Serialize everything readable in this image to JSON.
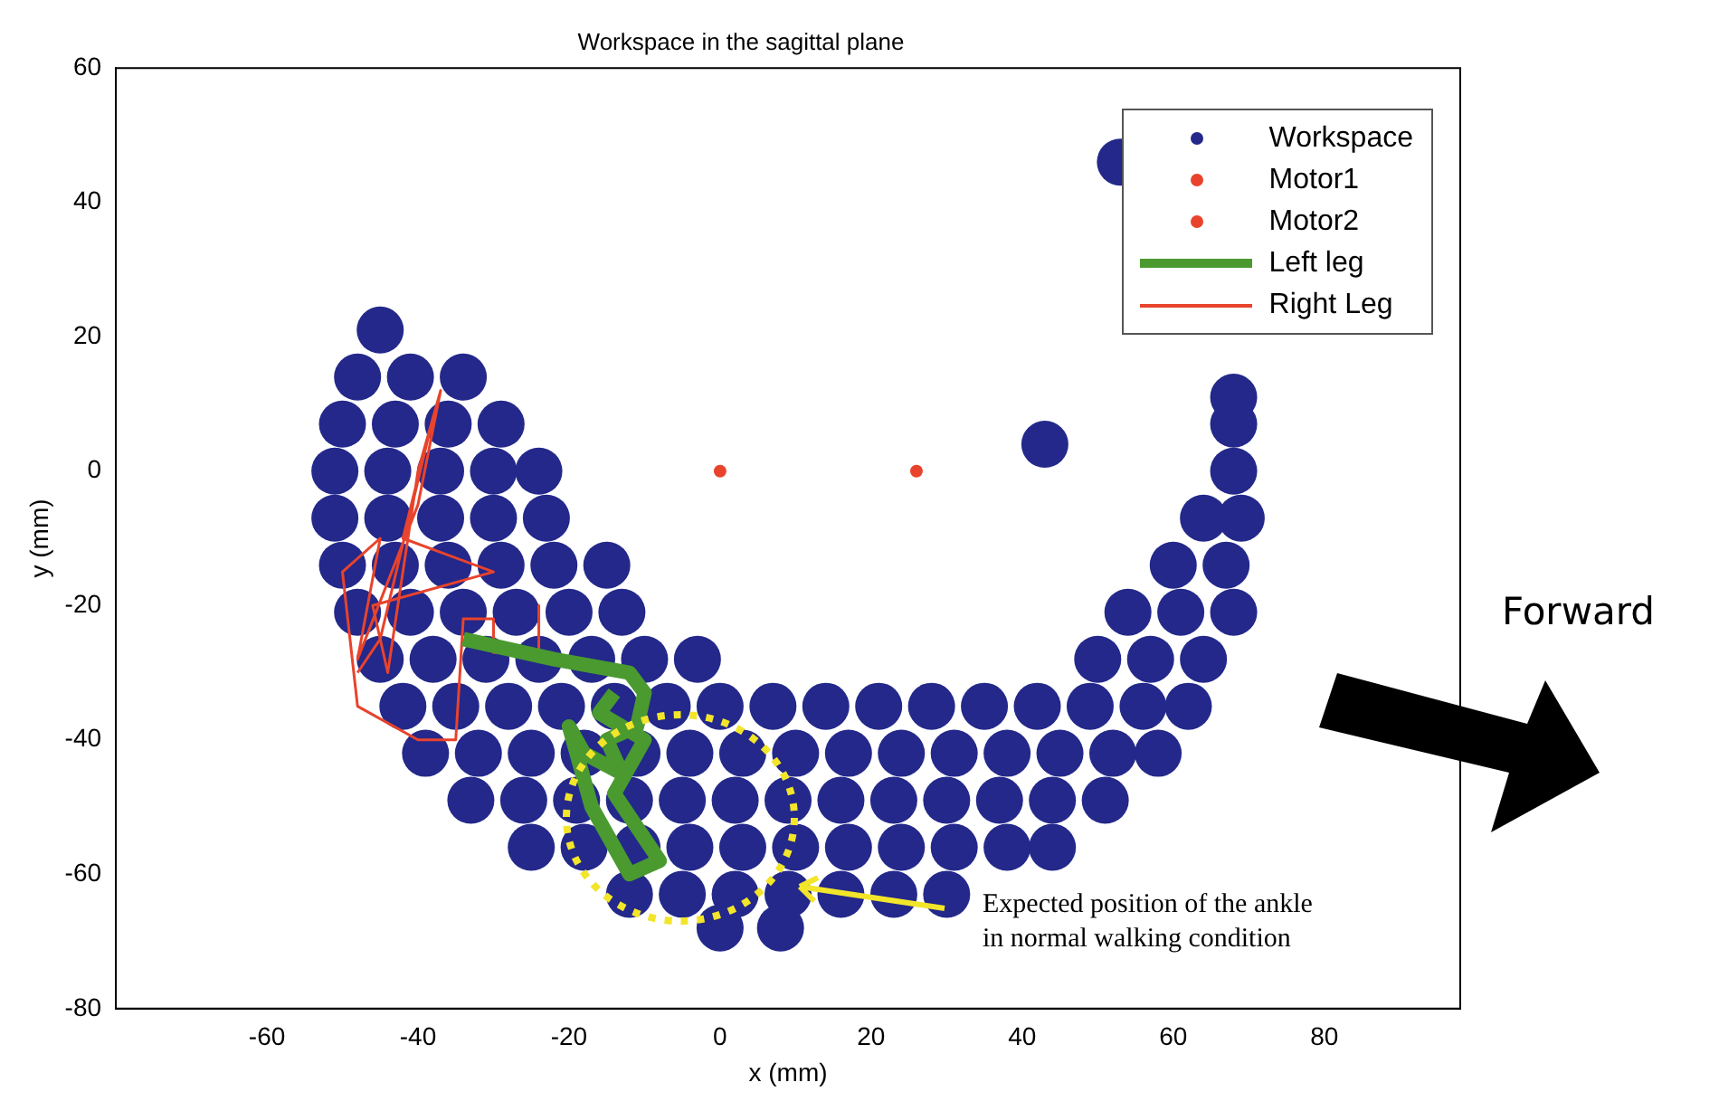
{
  "chart_data": {
    "type": "scatter",
    "title": "Workspace in the sagittal plane",
    "xlabel": "x (mm)",
    "ylabel": "y (mm)",
    "xlim": [
      -80,
      98
    ],
    "ylim": [
      -80,
      60
    ],
    "xticks": [
      -60,
      -40,
      -20,
      0,
      20,
      40,
      60,
      80
    ],
    "yticks": [
      -80,
      -60,
      -40,
      -20,
      0,
      20,
      40,
      60
    ],
    "grid": false,
    "legend": "top right",
    "marker": "circle",
    "series": [
      {
        "name": "Workspace",
        "type": "scatter",
        "color": "#23288a",
        "x": [
          -45,
          -48,
          -41,
          -34,
          -50,
          -43,
          -36,
          -29,
          68,
          -51,
          -44,
          -37,
          -30,
          -24,
          68,
          -51,
          -44,
          -37,
          -30,
          -23,
          64,
          69,
          -50,
          -43,
          -36,
          -29,
          -22,
          -15,
          60,
          67,
          -48,
          -41,
          -34,
          -27,
          -20,
          -13,
          54,
          61,
          68,
          -45,
          -38,
          -31,
          -24,
          -17,
          -10,
          -3,
          50,
          57,
          64,
          -42,
          -35,
          -28,
          -21,
          -14,
          -7,
          0,
          7,
          14,
          21,
          28,
          35,
          42,
          49,
          56,
          62,
          -39,
          -32,
          -25,
          -18,
          -11,
          -4,
          3,
          10,
          17,
          24,
          31,
          38,
          45,
          52,
          58,
          -33,
          -26,
          -19,
          -12,
          -5,
          2,
          9,
          16,
          23,
          30,
          37,
          44,
          51,
          -25,
          -18,
          -11,
          -4,
          3,
          10,
          17,
          24,
          31,
          38,
          44,
          -12,
          -5,
          2,
          9,
          16,
          23,
          30,
          0,
          8,
          53,
          43,
          68
        ],
        "values": [
          21,
          14,
          14,
          14,
          7,
          7,
          7,
          7,
          7,
          0,
          0,
          0,
          0,
          0,
          0,
          -7,
          -7,
          -7,
          -7,
          -7,
          -7,
          -7,
          -14,
          -14,
          -14,
          -14,
          -14,
          -14,
          -14,
          -14,
          -21,
          -21,
          -21,
          -21,
          -21,
          -21,
          -21,
          -21,
          -21,
          -28,
          -28,
          -28,
          -28,
          -28,
          -28,
          -28,
          -28,
          -28,
          -28,
          -35,
          -35,
          -35,
          -35,
          -35,
          -35,
          -35,
          -35,
          -35,
          -35,
          -35,
          -35,
          -35,
          -35,
          -35,
          -35,
          -42,
          -42,
          -42,
          -42,
          -42,
          -42,
          -42,
          -42,
          -42,
          -42,
          -42,
          -42,
          -42,
          -42,
          -42,
          -49,
          -49,
          -49,
          -49,
          -49,
          -49,
          -49,
          -49,
          -49,
          -49,
          -49,
          -49,
          -49,
          -56,
          -56,
          -56,
          -56,
          -56,
          -56,
          -56,
          -56,
          -56,
          -56,
          -56,
          -63,
          -63,
          -63,
          -63,
          -63,
          -63,
          -63,
          -68,
          -68,
          46,
          4,
          11
        ]
      },
      {
        "name": "Motor1",
        "type": "scatter",
        "color": "#e8432c",
        "x": [
          0
        ],
        "values": [
          0
        ]
      },
      {
        "name": "Motor2",
        "type": "scatter",
        "color": "#e8432c",
        "x": [
          26
        ],
        "values": [
          0
        ]
      },
      {
        "name": "Left leg",
        "type": "line",
        "marker": "none",
        "color": "#4a9a30",
        "x": [
          -34,
          -22,
          -12,
          -10,
          -11,
          -15,
          -13,
          -18,
          -20,
          -17,
          -12,
          -8,
          -14,
          -10,
          -16,
          -14
        ],
        "values": [
          -25,
          -28,
          -30,
          -33,
          -38,
          -40,
          -45,
          -42,
          -38,
          -50,
          -60,
          -58,
          -48,
          -40,
          -36,
          -33
        ]
      },
      {
        "name": "Right Leg",
        "type": "line",
        "marker": "none",
        "color": "#e8432c",
        "x": [
          -24,
          -24,
          -30,
          -30,
          -34,
          -35,
          -40,
          -48,
          -50,
          -45,
          -48,
          -40,
          -37,
          -40,
          -44,
          -46,
          -30,
          -42,
          -38,
          -45,
          -48
        ],
        "values": [
          -20,
          -27,
          -27,
          -22,
          -22,
          -40,
          -40,
          -35,
          -15,
          -10,
          -28,
          -5,
          12,
          0,
          -30,
          -20,
          -15,
          -10,
          8,
          -25,
          -30
        ]
      }
    ],
    "annotations": [
      "Expected position of the ankle in normal walking condition",
      "Forward"
    ]
  }
}
